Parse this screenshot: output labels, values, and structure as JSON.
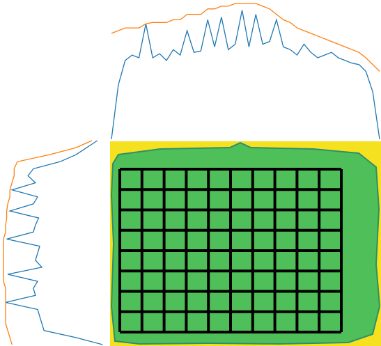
{
  "chart_data": [
    {
      "type": "line",
      "orientation": "horizontal",
      "series": [
        {
          "color": "#1f77b4",
          "values": [
            0,
            40,
            58,
            62,
            60,
            85,
            60,
            63,
            58,
            66,
            62,
            80,
            64,
            65,
            88,
            68,
            90,
            66,
            70,
            95,
            68,
            92,
            70,
            72,
            88,
            68,
            66,
            62,
            70,
            64,
            60,
            62,
            64,
            60,
            58,
            56,
            55,
            50,
            35,
            0
          ]
        },
        {
          "color": "#ff7f0e",
          "values": [
            78,
            80,
            82,
            82,
            82,
            85,
            86,
            86,
            86,
            88,
            88,
            92,
            92,
            92,
            96,
            96,
            98,
            98,
            100,
            100,
            100,
            100,
            98,
            96,
            92,
            88,
            86,
            82,
            80,
            78,
            76,
            74,
            72,
            70,
            68,
            66,
            64,
            60,
            55,
            50
          ]
        }
      ]
    },
    {
      "type": "line",
      "orientation": "vertical",
      "series": [
        {
          "color": "#1f77b4",
          "values": [
            10,
            20,
            30,
            45,
            70,
            75,
            68,
            90,
            66,
            70,
            92,
            65,
            68,
            70,
            95,
            64,
            66,
            68,
            62,
            94,
            66,
            70,
            68,
            96,
            66,
            64,
            62,
            60,
            30,
            5
          ]
        },
        {
          "color": "#ff7f0e",
          "values": [
            15,
            30,
            55,
            85,
            88,
            88,
            90,
            92,
            92,
            94,
            95,
            95,
            96,
            96,
            98,
            98,
            98,
            98,
            98,
            98,
            98,
            96,
            96,
            96,
            96,
            96,
            96,
            94,
            92,
            90
          ]
        }
      ]
    }
  ]
}
